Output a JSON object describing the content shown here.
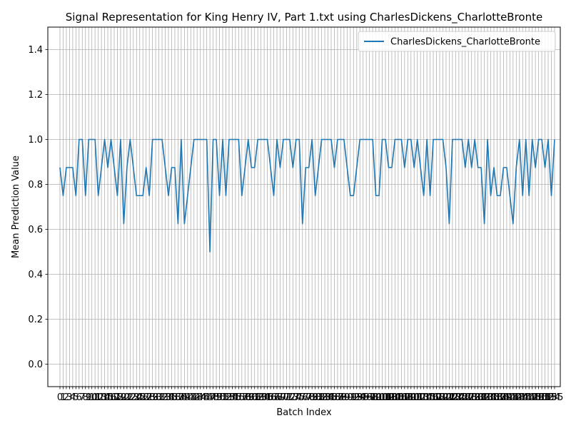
{
  "chart_data": {
    "type": "line",
    "title": "Signal Representation for King Henry IV, Part 1.txt using CharlesDickens_CharlotteBronte",
    "xlabel": "Batch Index",
    "ylabel": "Mean Prediction Value",
    "xlim": [
      -3.8,
      156.8
    ],
    "ylim": [
      -0.1,
      1.5
    ],
    "yticks": [
      0.0,
      0.2,
      0.4,
      0.6,
      0.8,
      1.0,
      1.2,
      1.4
    ],
    "ytick_labels": [
      "0.0",
      "0.2",
      "0.4",
      "0.6",
      "0.8",
      "1.0",
      "1.2",
      "1.4"
    ],
    "grid": true,
    "legend_position": "upper right",
    "line_color": "#1f77b4",
    "grid_color": "#b0b0b0",
    "series": [
      {
        "name": "CharlesDickens_CharlotteBronte",
        "values": [
          0.875,
          0.75,
          0.875,
          0.875,
          0.875,
          0.75,
          1.0,
          1.0,
          0.75,
          1.0,
          1.0,
          1.0,
          0.75,
          0.875,
          1.0,
          0.875,
          1.0,
          0.875,
          0.75,
          1.0,
          0.625,
          0.875,
          1.0,
          0.875,
          0.75,
          0.75,
          0.75,
          0.875,
          0.75,
          1.0,
          1.0,
          1.0,
          1.0,
          0.875,
          0.75,
          0.875,
          0.875,
          0.625,
          1.0,
          0.625,
          0.75,
          0.875,
          1.0,
          1.0,
          1.0,
          1.0,
          1.0,
          0.5,
          1.0,
          1.0,
          0.75,
          1.0,
          0.75,
          1.0,
          1.0,
          1.0,
          1.0,
          0.75,
          0.875,
          1.0,
          0.875,
          0.875,
          1.0,
          1.0,
          1.0,
          1.0,
          0.875,
          0.75,
          1.0,
          0.875,
          1.0,
          1.0,
          1.0,
          0.875,
          1.0,
          1.0,
          0.625,
          0.875,
          0.875,
          1.0,
          0.75,
          0.875,
          1.0,
          1.0,
          1.0,
          1.0,
          0.875,
          1.0,
          1.0,
          1.0,
          0.875,
          0.75,
          0.75,
          0.875,
          1.0,
          1.0,
          1.0,
          1.0,
          1.0,
          0.75,
          0.75,
          1.0,
          1.0,
          0.875,
          0.875,
          1.0,
          1.0,
          1.0,
          0.875,
          1.0,
          1.0,
          0.875,
          1.0,
          0.875,
          0.75,
          1.0,
          0.75,
          1.0,
          1.0,
          1.0,
          1.0,
          0.875,
          0.625,
          1.0,
          1.0,
          1.0,
          1.0,
          0.875,
          1.0,
          0.875,
          1.0,
          0.875,
          0.875,
          0.625,
          1.0,
          0.75,
          0.875,
          0.75,
          0.75,
          0.875,
          0.875,
          0.75,
          0.625,
          0.875,
          1.0,
          0.75,
          1.0,
          0.75,
          1.0,
          0.875,
          1.0,
          1.0,
          0.875,
          1.0,
          0.75,
          1.0
        ]
      }
    ]
  }
}
